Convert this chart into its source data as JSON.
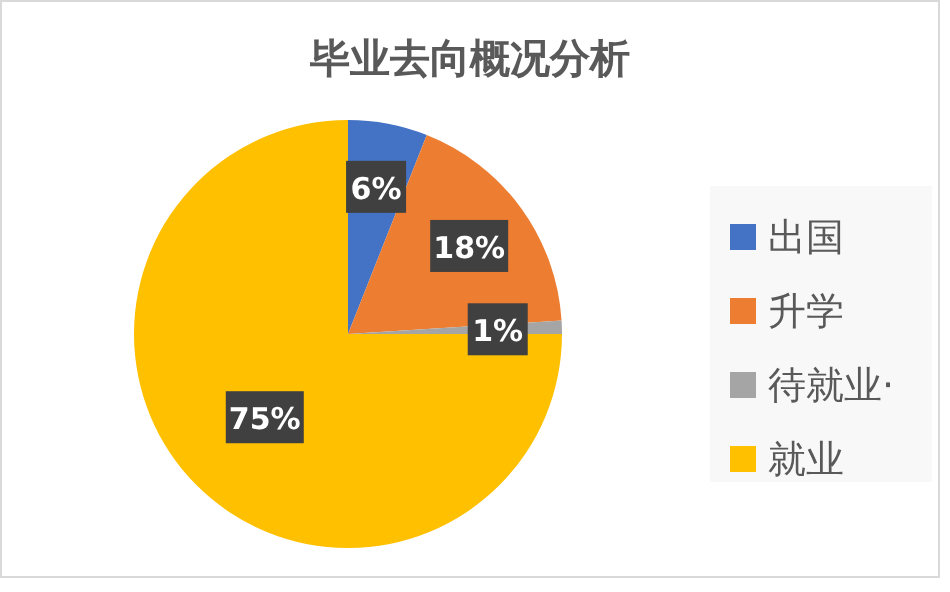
{
  "chart_data": {
    "type": "pie",
    "title": "毕业去向概况分析",
    "categories": [
      "出国",
      "升学",
      "待就业·",
      "就业"
    ],
    "values": [
      6,
      18,
      1,
      75
    ],
    "colors": [
      "#4472c4",
      "#ed7d31",
      "#a5a5a5",
      "#ffc000"
    ],
    "value_labels": [
      "6%",
      "18%",
      "1%",
      "75%"
    ],
    "legend": "right"
  }
}
